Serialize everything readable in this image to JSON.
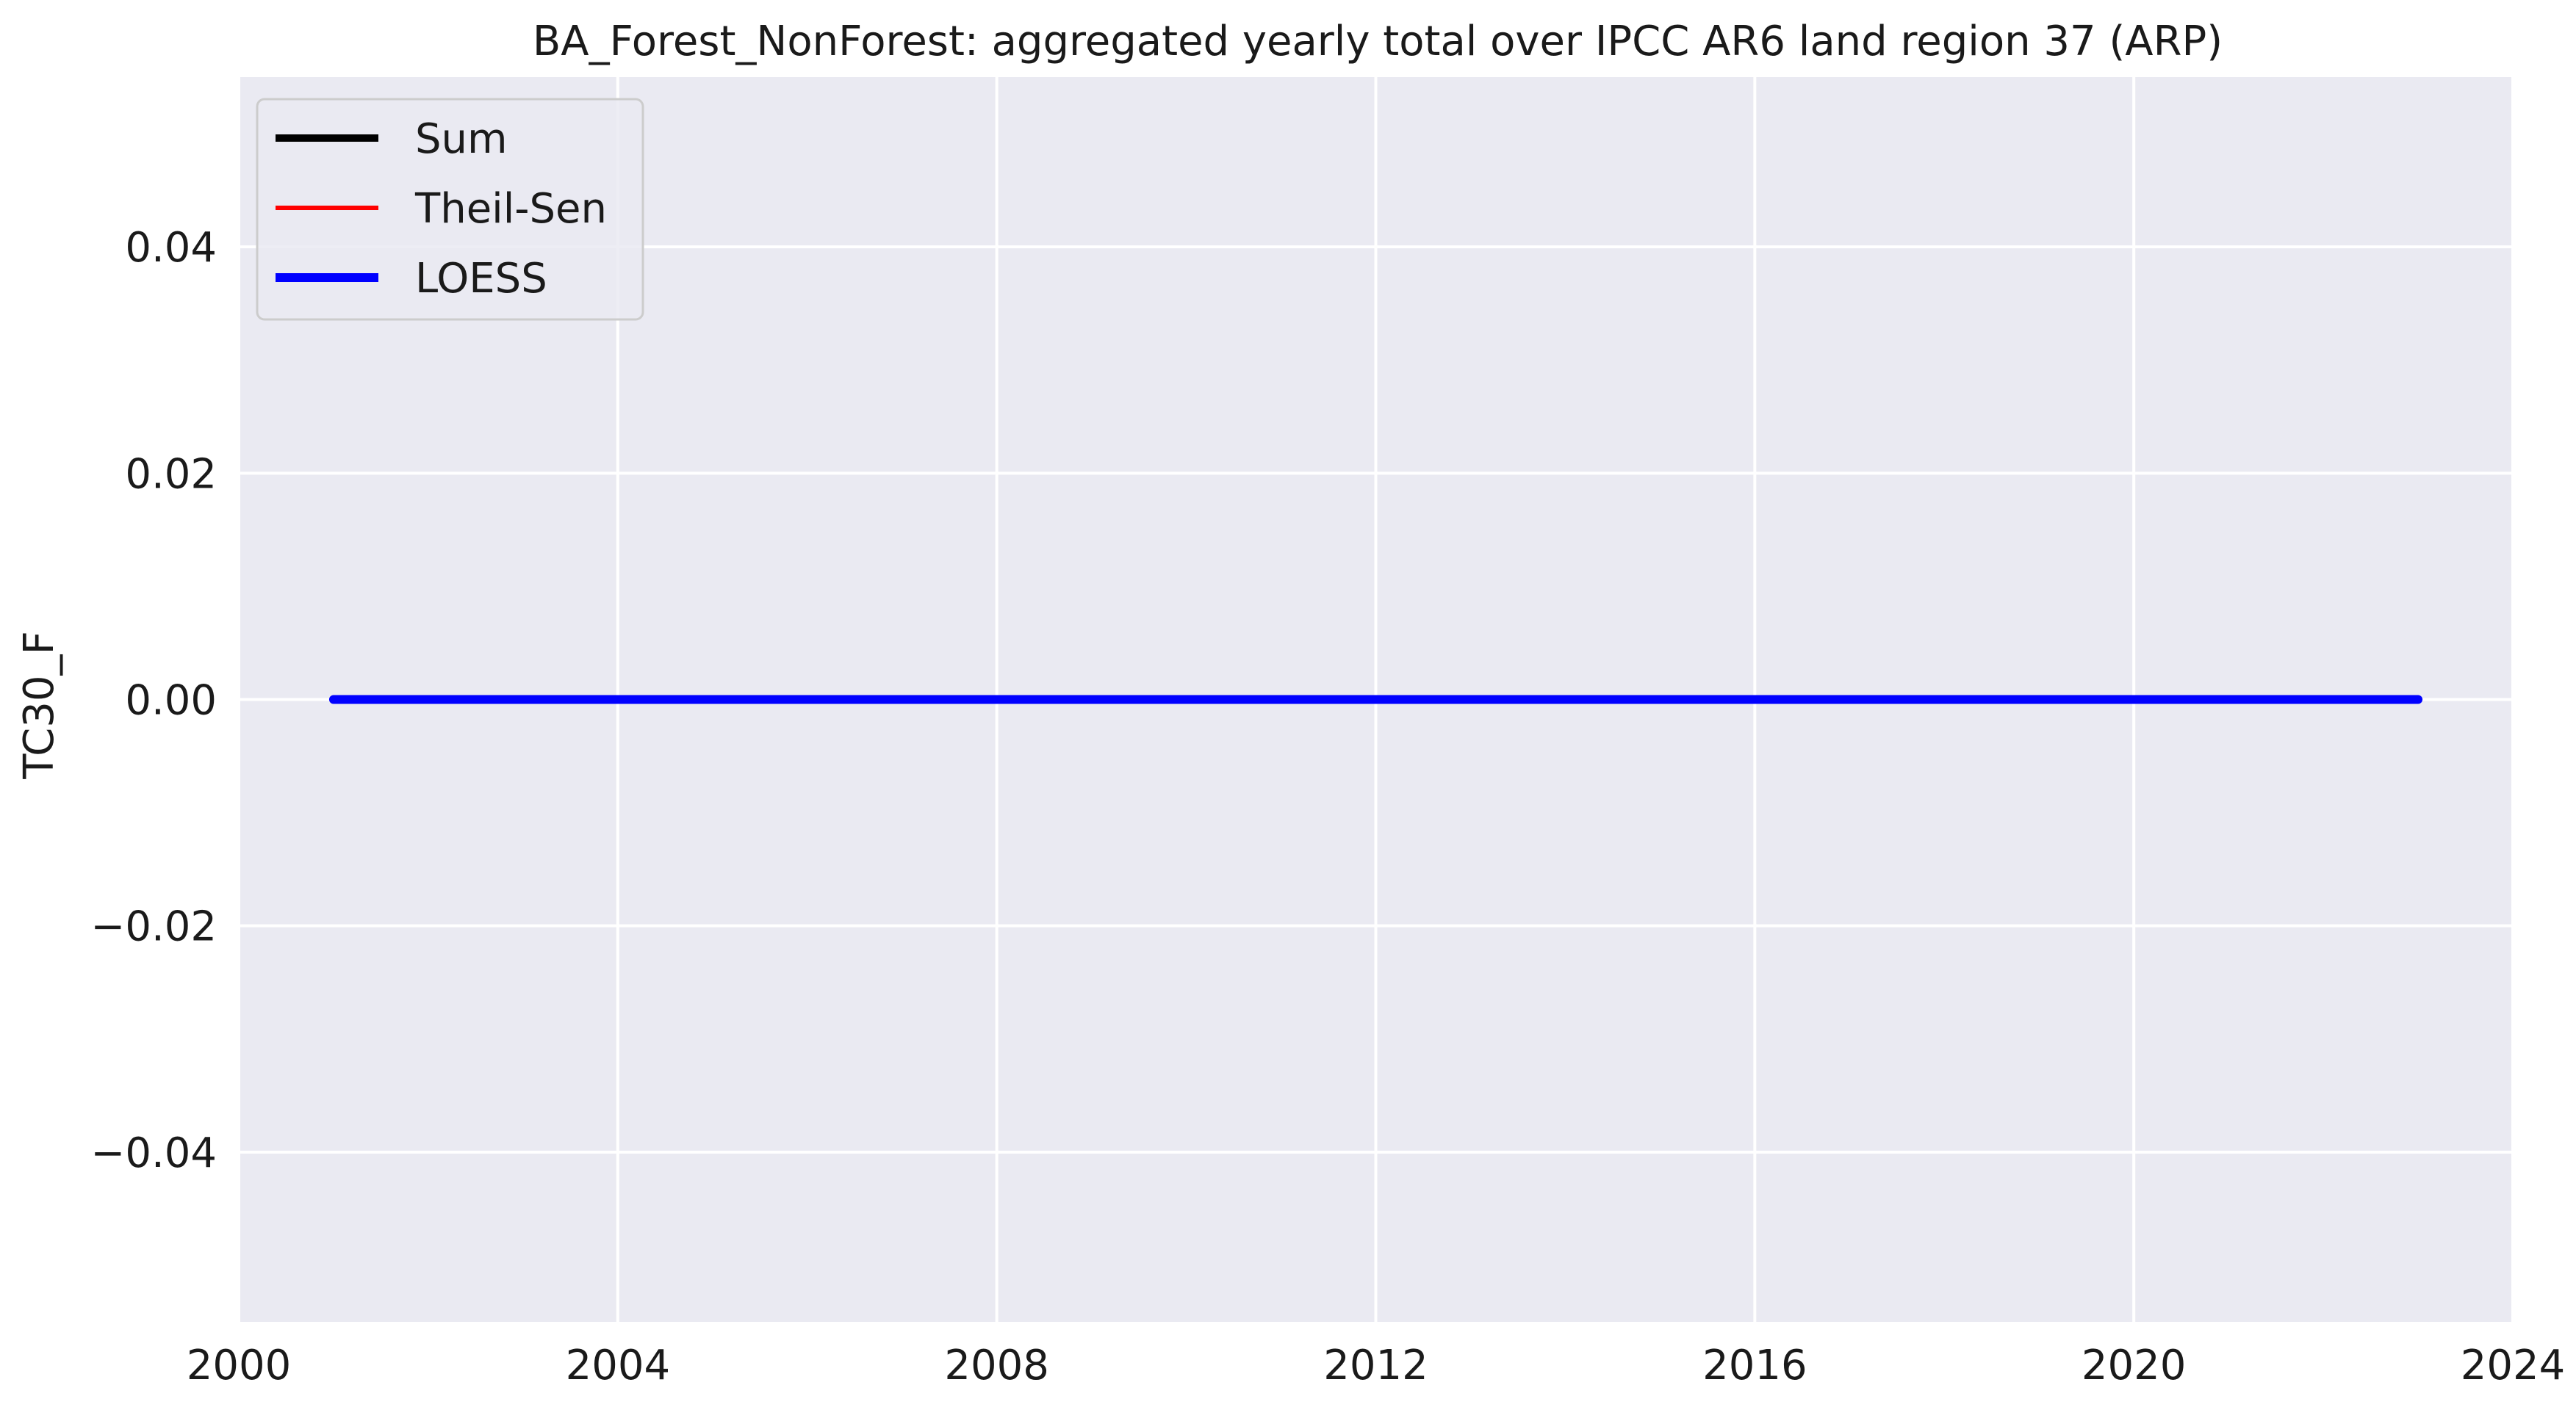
{
  "chart_data": {
    "type": "line",
    "title": "BA_Forest_NonForest: aggregated yearly total over IPCC AR6 land region 37 (ARP)",
    "xlabel": "",
    "ylabel": "TC30_F",
    "x_is_year": true,
    "xlim": [
      2000,
      2024
    ],
    "ylim": [
      -0.055,
      0.055
    ],
    "x_ticks": [
      2000,
      2004,
      2008,
      2012,
      2016,
      2020,
      2024
    ],
    "y_ticks": [
      -0.04,
      -0.02,
      0.0,
      0.02,
      0.04
    ],
    "y_tick_labels": [
      "−0.04",
      "−0.02",
      "0.00",
      "0.02",
      "0.04"
    ],
    "grid": true,
    "legend_position": "top-left",
    "x": [
      2001,
      2002,
      2003,
      2004,
      2005,
      2006,
      2007,
      2008,
      2009,
      2010,
      2011,
      2012,
      2013,
      2014,
      2015,
      2016,
      2017,
      2018,
      2019,
      2020,
      2021,
      2022,
      2023
    ],
    "series": [
      {
        "name": "Sum",
        "color": "#000000",
        "values": [
          0,
          0,
          0,
          0,
          0,
          0,
          0,
          0,
          0,
          0,
          0,
          0,
          0,
          0,
          0,
          0,
          0,
          0,
          0,
          0,
          0,
          0,
          0
        ]
      },
      {
        "name": "Theil-Sen",
        "color": "#ff0000",
        "values": [
          0,
          0,
          0,
          0,
          0,
          0,
          0,
          0,
          0,
          0,
          0,
          0,
          0,
          0,
          0,
          0,
          0,
          0,
          0,
          0,
          0,
          0,
          0
        ]
      },
      {
        "name": "LOESS",
        "color": "#0000ff",
        "values": [
          0,
          0,
          0,
          0,
          0,
          0,
          0,
          0,
          0,
          0,
          0,
          0,
          0,
          0,
          0,
          0,
          0,
          0,
          0,
          0,
          0,
          0,
          0
        ]
      }
    ]
  },
  "colors": {
    "plot_background": "#eaeaf2",
    "grid": "#ffffff",
    "text": "#1a1a1a",
    "legend_border": "#cccccc"
  }
}
